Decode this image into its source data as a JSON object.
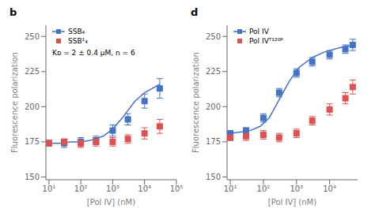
{
  "chart_data": [
    {
      "type": "line",
      "title": "b",
      "xlabel": "[Pol IV] (nM)",
      "ylabel": "Fluorescence polarization",
      "log": "x",
      "xlim": [
        8,
        100000
      ],
      "ylim": [
        148,
        258
      ],
      "xticks": [
        {
          "value": 10,
          "label": "10¹"
        },
        {
          "value": 100,
          "label": "10²"
        },
        {
          "value": 1000,
          "label": "10³"
        },
        {
          "value": 10000,
          "label": "10⁴"
        },
        {
          "value": 100000,
          "label": "10⁵"
        }
      ],
      "yticks": [
        150,
        175,
        200,
        225,
        250
      ],
      "legend": "upper left",
      "annotation": "Kᴅ = 2 ± 0.4 μM, n = 6",
      "series": [
        {
          "name": "SSB₄",
          "color": "#4472c4",
          "marker": "square",
          "line_style": "solid",
          "x": [
            10,
            30,
            100,
            300,
            1000,
            3000,
            10000,
            30000
          ],
          "values": [
            174,
            174,
            175,
            176,
            183,
            191,
            204,
            213
          ],
          "errors": [
            2,
            3,
            3,
            3,
            4,
            4,
            5,
            7
          ],
          "fit_x": [
            10,
            20,
            50,
            100,
            200,
            500,
            1000,
            2000,
            5000,
            10000,
            30000
          ],
          "fit_values": [
            174,
            174,
            175,
            175,
            176,
            179,
            184,
            192,
            204,
            210,
            216
          ]
        },
        {
          "name": "SSB¹₄",
          "color": "#e05050",
          "marker": "square",
          "line_style": "none",
          "x": [
            10,
            30,
            100,
            300,
            1000,
            3000,
            10000,
            30000
          ],
          "values": [
            174,
            175,
            174,
            175,
            175,
            177,
            181,
            186
          ],
          "errors": [
            2,
            2,
            3,
            3,
            3,
            3,
            4,
            5
          ]
        }
      ]
    },
    {
      "type": "line",
      "title": "d",
      "xlabel": "[Pol IV] (nM)",
      "ylabel": "Fluorescence polarization",
      "log": "x",
      "xlim": [
        8,
        70000
      ],
      "ylim": [
        148,
        258
      ],
      "xticks": [
        {
          "value": 10,
          "label": "10¹"
        },
        {
          "value": 100,
          "label": "10²"
        },
        {
          "value": 1000,
          "label": "10³"
        },
        {
          "value": 10000,
          "label": "10⁴"
        }
      ],
      "yticks": [
        150,
        175,
        200,
        225,
        250
      ],
      "legend": "upper left",
      "series": [
        {
          "name": "Pol IV",
          "color": "#4472c4",
          "marker": "square",
          "line_style": "solid",
          "x": [
            10,
            30,
            100,
            300,
            1000,
            3000,
            10000,
            30000,
            50000
          ],
          "values": [
            181,
            183,
            192,
            210,
            224,
            232,
            237,
            241,
            244
          ],
          "errors": [
            2,
            2,
            3,
            3,
            3,
            3,
            3,
            3,
            4
          ],
          "fit_x": [
            10,
            20,
            40,
            80,
            150,
            300,
            600,
            1200,
            3000,
            7000,
            20000,
            50000
          ],
          "fit_values": [
            181,
            182,
            183,
            186,
            192,
            205,
            218,
            228,
            235,
            239,
            242,
            244
          ]
        },
        {
          "name": "Pol IVᵀ¹²⁰ᴾ",
          "color": "#e05050",
          "marker": "square",
          "line_style": "none",
          "x": [
            10,
            30,
            100,
            300,
            1000,
            3000,
            10000,
            30000,
            50000
          ],
          "values": [
            178,
            179,
            180,
            178,
            181,
            190,
            198,
            206,
            214
          ],
          "errors": [
            2,
            3,
            3,
            3,
            3,
            3,
            4,
            4,
            5
          ]
        }
      ]
    }
  ]
}
